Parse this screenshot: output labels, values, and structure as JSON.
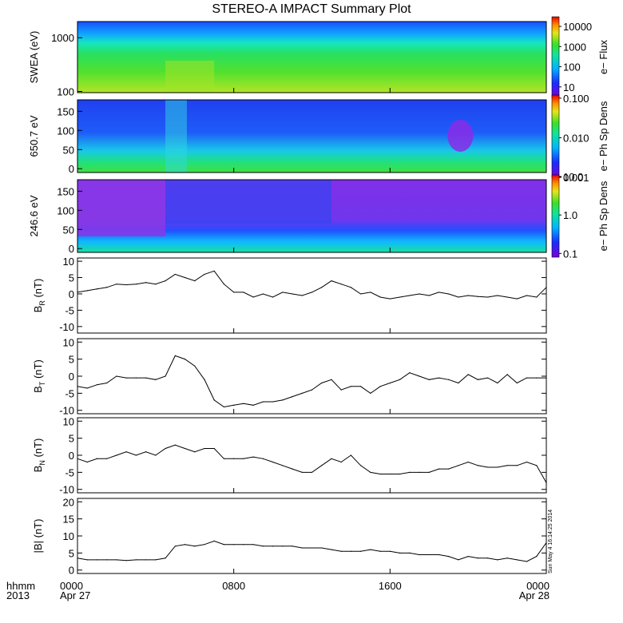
{
  "title": "STEREO-A IMPACT Summary Plot",
  "timestamp": "Sun May 4 16:14:25 2014",
  "corner_labels": [
    "hhmm",
    "2013"
  ],
  "x_ticks": [
    {
      "hour": 0,
      "label": "0000",
      "date": "Apr 27"
    },
    {
      "hour": 8,
      "label": "0800",
      "date": ""
    },
    {
      "hour": 16,
      "label": "1600",
      "date": ""
    },
    {
      "hour": 24,
      "label": "0000",
      "date": "Apr 28"
    }
  ],
  "spectrograms": [
    {
      "ylabel": "SWEA (eV)",
      "yscale": "log",
      "yticks": [
        {
          "value": 1000,
          "label": "1000"
        },
        {
          "value": 100,
          "label": "100"
        }
      ],
      "ylim": [
        95,
        2000
      ],
      "colorbar_label": "e− Flux",
      "colorbar_ticks": [
        {
          "value": 10000,
          "label": "10000"
        },
        {
          "value": 1000,
          "label": "1000"
        },
        {
          "value": 100,
          "label": "100"
        },
        {
          "value": 10,
          "label": "10"
        }
      ],
      "colorbar_range": [
        3,
        30000
      ]
    },
    {
      "ylabel": "650.7 eV",
      "yscale": "linear",
      "yticks": [
        {
          "value": 150,
          "label": "150"
        },
        {
          "value": 100,
          "label": "100"
        },
        {
          "value": 50,
          "label": "50"
        },
        {
          "value": 0,
          "label": "0"
        }
      ],
      "ylim": [
        -10,
        180
      ],
      "colorbar_label": "e− Ph Sp Dens",
      "colorbar_ticks": [
        {
          "value": 0.1,
          "label": "0.100"
        },
        {
          "value": 0.01,
          "label": "0.010"
        },
        {
          "value": 0.001,
          "label": "0.001"
        }
      ],
      "colorbar_range": [
        0.001,
        0.12
      ]
    },
    {
      "ylabel": "246.6 eV",
      "yscale": "linear",
      "yticks": [
        {
          "value": 150,
          "label": "150"
        },
        {
          "value": 100,
          "label": "100"
        },
        {
          "value": 50,
          "label": "50"
        },
        {
          "value": 0,
          "label": "0"
        }
      ],
      "ylim": [
        -10,
        180
      ],
      "colorbar_label": "e− Ph Sp Dens",
      "colorbar_ticks": [
        {
          "value": 10,
          "label": "10.0"
        },
        {
          "value": 1,
          "label": "1.0"
        },
        {
          "value": 0.1,
          "label": "0.1"
        }
      ],
      "colorbar_range": [
        0.08,
        11
      ]
    }
  ],
  "chart_data": [
    {
      "type": "line",
      "ylabel": "B",
      "ysub": "R",
      "yunit": " (nT)",
      "ylim": [
        -12,
        11
      ],
      "yticks": [
        10,
        5,
        0,
        -5,
        -10
      ],
      "x": [
        0,
        0.5,
        1,
        1.5,
        2,
        2.5,
        3,
        3.5,
        4,
        4.5,
        5,
        5.5,
        6,
        6.5,
        7,
        7.5,
        8,
        8.5,
        9,
        9.5,
        10,
        10.5,
        11,
        11.5,
        12,
        12.5,
        13,
        13.5,
        14,
        14.5,
        15,
        15.5,
        16,
        16.5,
        17,
        17.5,
        18,
        18.5,
        19,
        19.5,
        20,
        20.5,
        21,
        21.5,
        22,
        22.5,
        23,
        23.5,
        24
      ],
      "values": [
        0.5,
        1,
        1.5,
        2,
        3,
        2.8,
        3,
        3.5,
        3,
        4,
        6,
        5,
        4,
        6,
        7,
        3,
        0.5,
        0.5,
        -1,
        0,
        -1,
        0.5,
        0,
        -0.5,
        0.5,
        2,
        4,
        3,
        2,
        0,
        0.5,
        -1,
        -1.5,
        -1,
        -0.5,
        0,
        -0.5,
        0.5,
        0,
        -1,
        -0.5,
        -0.8,
        -1,
        -0.5,
        -1,
        -1.5,
        -0.5,
        -1,
        2
      ]
    },
    {
      "type": "line",
      "ylabel": "B",
      "ysub": "T",
      "yunit": " (nT)",
      "ylim": [
        -11,
        11
      ],
      "yticks": [
        10,
        5,
        0,
        -5,
        -10
      ],
      "x": [
        0,
        0.5,
        1,
        1.5,
        2,
        2.5,
        3,
        3.5,
        4,
        4.5,
        5,
        5.5,
        6,
        6.5,
        7,
        7.5,
        8,
        8.5,
        9,
        9.5,
        10,
        10.5,
        11,
        11.5,
        12,
        12.5,
        13,
        13.5,
        14,
        14.5,
        15,
        15.5,
        16,
        16.5,
        17,
        17.5,
        18,
        18.5,
        19,
        19.5,
        20,
        20.5,
        21,
        21.5,
        22,
        22.5,
        23,
        23.5,
        24
      ],
      "values": [
        -3,
        -3.5,
        -2.5,
        -2,
        0,
        -0.5,
        -0.5,
        -0.5,
        -1,
        0,
        6,
        5,
        3,
        -1,
        -7,
        -9,
        -8.5,
        -8,
        -8.5,
        -7.5,
        -7.5,
        -7,
        -6,
        -5,
        -4,
        -2,
        -1,
        -4,
        -3,
        -3,
        -5,
        -3,
        -2,
        -1,
        1,
        0,
        -1,
        -0.5,
        -1,
        -2,
        0.5,
        -1,
        -0.5,
        -2,
        0.5,
        -2,
        -0.5,
        -0.5,
        -0.5
      ]
    },
    {
      "type": "line",
      "ylabel": "B",
      "ysub": "N",
      "yunit": " (nT)",
      "ylim": [
        -11,
        11
      ],
      "yticks": [
        10,
        5,
        0,
        -5,
        -10
      ],
      "x": [
        0,
        0.5,
        1,
        1.5,
        2,
        2.5,
        3,
        3.5,
        4,
        4.5,
        5,
        5.5,
        6,
        6.5,
        7,
        7.5,
        8,
        8.5,
        9,
        9.5,
        10,
        10.5,
        11,
        11.5,
        12,
        12.5,
        13,
        13.5,
        14,
        14.5,
        15,
        15.5,
        16,
        16.5,
        17,
        17.5,
        18,
        18.5,
        19,
        19.5,
        20,
        20.5,
        21,
        21.5,
        22,
        22.5,
        23,
        23.5,
        24
      ],
      "values": [
        -1,
        -2,
        -1,
        -1,
        0,
        1,
        0,
        1,
        0,
        2,
        3,
        2,
        1,
        2,
        2,
        -1,
        -1,
        -1,
        -0.5,
        -1,
        -2,
        -3,
        -4,
        -5,
        -5,
        -3,
        -1,
        -2,
        0,
        -3,
        -5,
        -5.5,
        -5.5,
        -5.5,
        -5,
        -5,
        -5,
        -4,
        -4,
        -3,
        -2,
        -3,
        -3.5,
        -3.5,
        -3,
        -3,
        -2,
        -3,
        -8
      ]
    },
    {
      "type": "line",
      "ylabel": "|B|",
      "ysub": "",
      "yunit": " (nT)",
      "ylim": [
        -1,
        21
      ],
      "yticks": [
        20,
        15,
        10,
        5,
        0
      ],
      "x": [
        0,
        0.5,
        1,
        1.5,
        2,
        2.5,
        3,
        3.5,
        4,
        4.5,
        5,
        5.5,
        6,
        6.5,
        7,
        7.5,
        8,
        8.5,
        9,
        9.5,
        10,
        10.5,
        11,
        11.5,
        12,
        12.5,
        13,
        13.5,
        14,
        14.5,
        15,
        15.5,
        16,
        16.5,
        17,
        17.5,
        18,
        18.5,
        19,
        19.5,
        20,
        20.5,
        21,
        21.5,
        22,
        22.5,
        23,
        23.5,
        24
      ],
      "values": [
        3.5,
        3,
        3,
        3,
        3,
        2.8,
        3,
        3,
        3,
        3.5,
        7,
        7.5,
        7,
        7.5,
        8.5,
        7.5,
        7.5,
        7.5,
        7.5,
        7,
        7,
        7,
        7,
        6.5,
        6.5,
        6.5,
        6,
        5.5,
        5.5,
        5.5,
        6,
        5.5,
        5.5,
        5,
        5,
        4.5,
        4.5,
        4.5,
        4,
        3,
        4,
        3.5,
        3.5,
        3,
        3.5,
        3,
        2.5,
        4,
        8
      ]
    }
  ]
}
